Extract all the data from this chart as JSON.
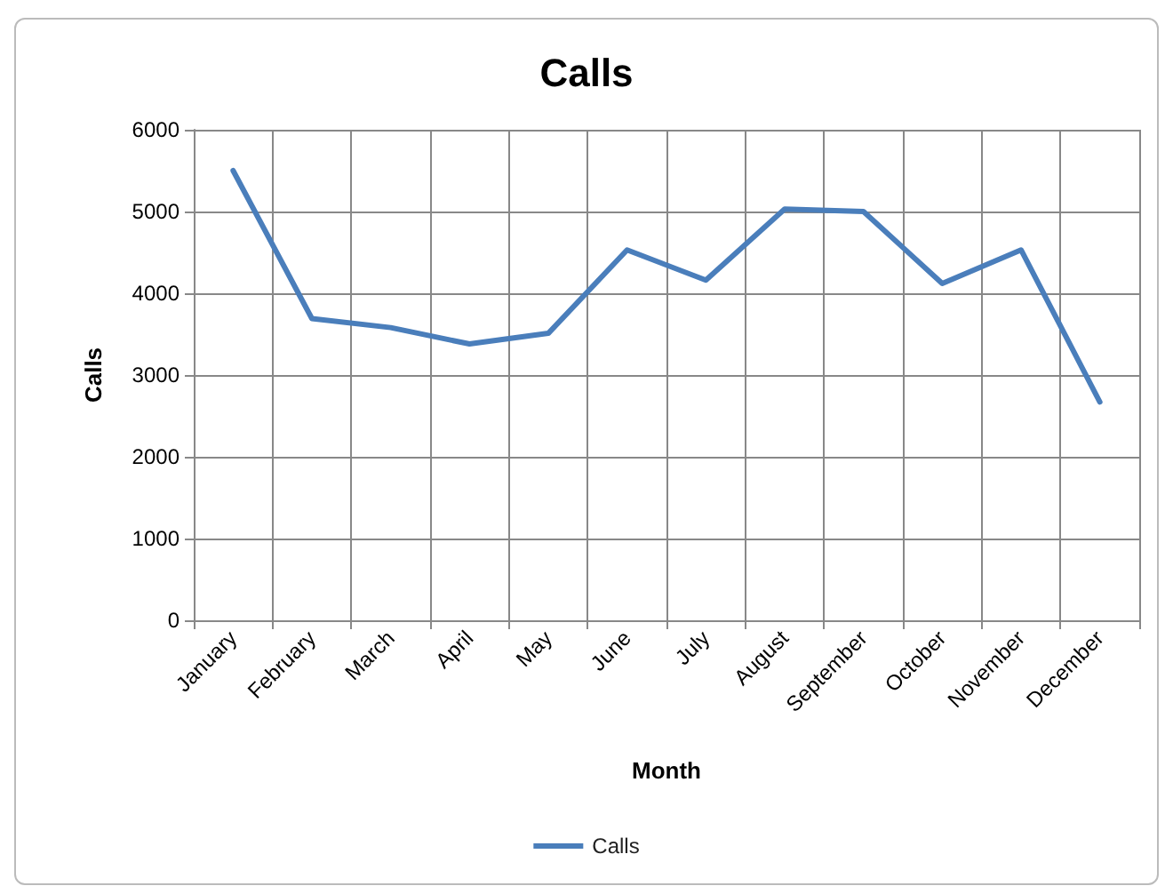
{
  "chart_data": {
    "type": "line",
    "title": "Calls",
    "xlabel": "Month",
    "ylabel": "Calls",
    "categories": [
      "January",
      "February",
      "March",
      "April",
      "May",
      "June",
      "July",
      "August",
      "September",
      "October",
      "November",
      "December"
    ],
    "series": [
      {
        "name": "Calls",
        "color": "#4a7ebb",
        "values": [
          5500,
          3690,
          3580,
          3380,
          3510,
          4530,
          4160,
          5030,
          5000,
          4120,
          4530,
          2670
        ]
      }
    ],
    "ylim": [
      0,
      6000
    ],
    "yticks": [
      0,
      1000,
      2000,
      3000,
      4000,
      5000,
      6000
    ],
    "grid": true,
    "legend": "bottom",
    "marker": "none",
    "line_style": "solid"
  }
}
